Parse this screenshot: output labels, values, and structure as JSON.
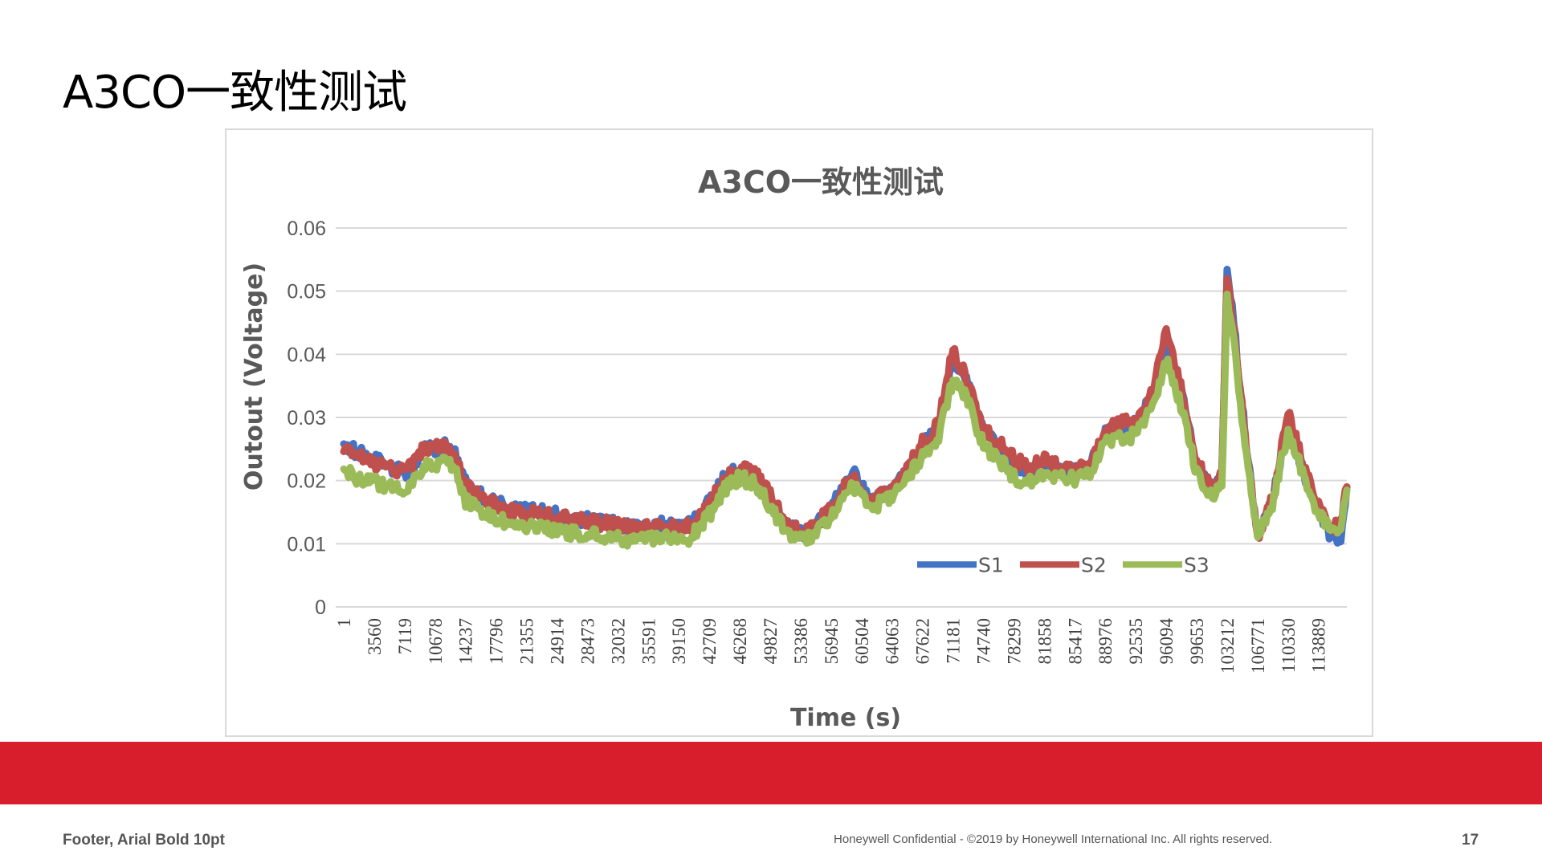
{
  "slide": {
    "title": "A3CO一致性测试"
  },
  "footer": {
    "left": "Footer, Arial Bold 10pt",
    "center": "Honeywell Confidential - ©2019 by Honeywell International Inc. All rights reserved.",
    "page": "17"
  },
  "colors": {
    "brand_band": "#d81e2c",
    "grid": "#d9d9d9",
    "frame": "#d9d9d9"
  },
  "chart_data": {
    "type": "line",
    "title": "A3CO一致性测试",
    "xlabel": "Time (s)",
    "ylabel": "Outout (Voltage)",
    "ylim": [
      0,
      0.06
    ],
    "yticks": [
      "0",
      "0.01",
      "0.02",
      "0.03",
      "0.04",
      "0.05",
      "0.06"
    ],
    "xticks": [
      "1",
      "3560",
      "7119",
      "10678",
      "14237",
      "17796",
      "21355",
      "24914",
      "28473",
      "32032",
      "35591",
      "39150",
      "42709",
      "46268",
      "49827",
      "53386",
      "56945",
      "60504",
      "64063",
      "67622",
      "71181",
      "74740",
      "78299",
      "81858",
      "85417",
      "88976",
      "92535",
      "96094",
      "99653",
      "103212",
      "106771",
      "110330",
      "113889"
    ],
    "xlim": [
      1,
      117200
    ],
    "grid": true,
    "legend_position": "bottom-right inside plot",
    "series": [
      {
        "name": "S1",
        "color": "#4472c4",
        "points": [
          [
            1,
            0.0262
          ],
          [
            1500,
            0.0245
          ],
          [
            3560,
            0.0232
          ],
          [
            5500,
            0.0222
          ],
          [
            7119,
            0.021
          ],
          [
            8600,
            0.0232
          ],
          [
            9500,
            0.0255
          ],
          [
            10678,
            0.025
          ],
          [
            12000,
            0.0255
          ],
          [
            13000,
            0.024
          ],
          [
            14237,
            0.0195
          ],
          [
            16000,
            0.0178
          ],
          [
            17796,
            0.0165
          ],
          [
            19500,
            0.0155
          ],
          [
            21355,
            0.0152
          ],
          [
            23000,
            0.015
          ],
          [
            24914,
            0.0145
          ],
          [
            26500,
            0.014
          ],
          [
            28473,
            0.0137
          ],
          [
            30500,
            0.0134
          ],
          [
            32032,
            0.013
          ],
          [
            33500,
            0.0125
          ],
          [
            35591,
            0.0128
          ],
          [
            37500,
            0.0132
          ],
          [
            39150,
            0.0125
          ],
          [
            40500,
            0.013
          ],
          [
            42709,
            0.0165
          ],
          [
            44500,
            0.0205
          ],
          [
            46268,
            0.0218
          ],
          [
            48000,
            0.021
          ],
          [
            49827,
            0.0175
          ],
          [
            51500,
            0.0135
          ],
          [
            53386,
            0.0115
          ],
          [
            55000,
            0.0125
          ],
          [
            56945,
            0.0155
          ],
          [
            58500,
            0.0195
          ],
          [
            59500,
            0.022
          ],
          [
            60504,
            0.019
          ],
          [
            61800,
            0.0165
          ],
          [
            63000,
            0.0178
          ],
          [
            64063,
            0.0185
          ],
          [
            65800,
            0.0215
          ],
          [
            67622,
            0.0255
          ],
          [
            69500,
            0.0285
          ],
          [
            70300,
            0.0338
          ],
          [
            71181,
            0.0385
          ],
          [
            72200,
            0.0375
          ],
          [
            73300,
            0.0335
          ],
          [
            74740,
            0.0275
          ],
          [
            76500,
            0.0255
          ],
          [
            78299,
            0.0225
          ],
          [
            80000,
            0.0215
          ],
          [
            81858,
            0.023
          ],
          [
            83500,
            0.0218
          ],
          [
            85417,
            0.0215
          ],
          [
            87200,
            0.0225
          ],
          [
            88976,
            0.0275
          ],
          [
            90800,
            0.0285
          ],
          [
            92535,
            0.029
          ],
          [
            94500,
            0.0335
          ],
          [
            96094,
            0.0425
          ],
          [
            97800,
            0.0345
          ],
          [
            99653,
            0.0225
          ],
          [
            101500,
            0.018
          ],
          [
            102600,
            0.0205
          ],
          [
            103212,
            0.0545
          ],
          [
            104200,
            0.042
          ],
          [
            105500,
            0.025
          ],
          [
            106771,
            0.0115
          ],
          [
            108500,
            0.0165
          ],
          [
            110330,
            0.0295
          ],
          [
            112000,
            0.022
          ],
          [
            113889,
            0.015
          ],
          [
            115500,
            0.0108
          ],
          [
            116500,
            0.0112
          ],
          [
            117200,
            0.019
          ]
        ]
      },
      {
        "name": "S2",
        "color": "#c0504d",
        "points": [
          [
            1,
            0.0255
          ],
          [
            1500,
            0.024
          ],
          [
            3560,
            0.0228
          ],
          [
            5500,
            0.022
          ],
          [
            7119,
            0.0212
          ],
          [
            8600,
            0.0235
          ],
          [
            9500,
            0.0255
          ],
          [
            10678,
            0.0252
          ],
          [
            12000,
            0.0252
          ],
          [
            13000,
            0.0238
          ],
          [
            14237,
            0.0192
          ],
          [
            16000,
            0.0175
          ],
          [
            17796,
            0.016
          ],
          [
            19500,
            0.0152
          ],
          [
            21355,
            0.0148
          ],
          [
            23000,
            0.0148
          ],
          [
            24914,
            0.0143
          ],
          [
            26500,
            0.0138
          ],
          [
            28473,
            0.0135
          ],
          [
            30500,
            0.0132
          ],
          [
            32032,
            0.0128
          ],
          [
            33500,
            0.0124
          ],
          [
            35591,
            0.0126
          ],
          [
            37500,
            0.013
          ],
          [
            39150,
            0.0123
          ],
          [
            40500,
            0.0128
          ],
          [
            42709,
            0.0163
          ],
          [
            44500,
            0.0205
          ],
          [
            46268,
            0.022
          ],
          [
            48000,
            0.0212
          ],
          [
            49827,
            0.0178
          ],
          [
            51500,
            0.0138
          ],
          [
            53386,
            0.0115
          ],
          [
            55000,
            0.0128
          ],
          [
            56945,
            0.0155
          ],
          [
            58500,
            0.019
          ],
          [
            59500,
            0.0212
          ],
          [
            60504,
            0.0185
          ],
          [
            61800,
            0.0165
          ],
          [
            63000,
            0.0178
          ],
          [
            64063,
            0.0188
          ],
          [
            65800,
            0.022
          ],
          [
            67622,
            0.026
          ],
          [
            69500,
            0.029
          ],
          [
            70300,
            0.035
          ],
          [
            71181,
            0.0405
          ],
          [
            72200,
            0.038
          ],
          [
            73300,
            0.034
          ],
          [
            74740,
            0.028
          ],
          [
            76500,
            0.026
          ],
          [
            78299,
            0.0235
          ],
          [
            80000,
            0.022
          ],
          [
            81858,
            0.0235
          ],
          [
            83500,
            0.0222
          ],
          [
            85417,
            0.022
          ],
          [
            87200,
            0.0228
          ],
          [
            88976,
            0.028
          ],
          [
            90800,
            0.029
          ],
          [
            92535,
            0.0295
          ],
          [
            94500,
            0.034
          ],
          [
            96094,
            0.0438
          ],
          [
            97800,
            0.035
          ],
          [
            99653,
            0.023
          ],
          [
            101500,
            0.0185
          ],
          [
            102600,
            0.021
          ],
          [
            103212,
            0.052
          ],
          [
            104200,
            0.041
          ],
          [
            105500,
            0.025
          ],
          [
            106771,
            0.0108
          ],
          [
            108500,
            0.017
          ],
          [
            110330,
            0.0305
          ],
          [
            112000,
            0.0235
          ],
          [
            113889,
            0.016
          ],
          [
            115500,
            0.0125
          ],
          [
            116500,
            0.0135
          ],
          [
            117200,
            0.019
          ]
        ]
      },
      {
        "name": "S3",
        "color": "#9bbb59",
        "points": [
          [
            1,
            0.0218
          ],
          [
            1500,
            0.0205
          ],
          [
            3560,
            0.0198
          ],
          [
            5500,
            0.019
          ],
          [
            7119,
            0.018
          ],
          [
            8600,
            0.0205
          ],
          [
            9500,
            0.0225
          ],
          [
            10678,
            0.0222
          ],
          [
            12000,
            0.0228
          ],
          [
            13000,
            0.0215
          ],
          [
            14237,
            0.0168
          ],
          [
            16000,
            0.0152
          ],
          [
            17796,
            0.014
          ],
          [
            19500,
            0.013
          ],
          [
            21355,
            0.0128
          ],
          [
            23000,
            0.0126
          ],
          [
            24914,
            0.0122
          ],
          [
            26500,
            0.0118
          ],
          [
            28473,
            0.0115
          ],
          [
            30500,
            0.0112
          ],
          [
            32032,
            0.0108
          ],
          [
            33500,
            0.0102
          ],
          [
            35591,
            0.0108
          ],
          [
            37500,
            0.0112
          ],
          [
            39150,
            0.0105
          ],
          [
            40500,
            0.011
          ],
          [
            42709,
            0.0145
          ],
          [
            44500,
            0.0188
          ],
          [
            46268,
            0.0205
          ],
          [
            48000,
            0.0195
          ],
          [
            49827,
            0.016
          ],
          [
            51500,
            0.0122
          ],
          [
            53386,
            0.0105
          ],
          [
            55000,
            0.0115
          ],
          [
            56945,
            0.0142
          ],
          [
            58500,
            0.0175
          ],
          [
            59500,
            0.0195
          ],
          [
            60504,
            0.0172
          ],
          [
            61800,
            0.0155
          ],
          [
            63000,
            0.0168
          ],
          [
            64063,
            0.0175
          ],
          [
            65800,
            0.0205
          ],
          [
            67622,
            0.0238
          ],
          [
            69500,
            0.0265
          ],
          [
            70300,
            0.0318
          ],
          [
            71181,
            0.0358
          ],
          [
            72200,
            0.0348
          ],
          [
            73300,
            0.031
          ],
          [
            74740,
            0.0255
          ],
          [
            76500,
            0.0235
          ],
          [
            78299,
            0.0205
          ],
          [
            80000,
            0.0198
          ],
          [
            81858,
            0.0215
          ],
          [
            83500,
            0.0205
          ],
          [
            85417,
            0.0202
          ],
          [
            87200,
            0.021
          ],
          [
            88976,
            0.0258
          ],
          [
            90800,
            0.0268
          ],
          [
            92535,
            0.0272
          ],
          [
            94500,
            0.0315
          ],
          [
            96094,
            0.0395
          ],
          [
            97800,
            0.032
          ],
          [
            99653,
            0.021
          ],
          [
            101500,
            0.0175
          ],
          [
            102600,
            0.0195
          ],
          [
            103212,
            0.0495
          ],
          [
            104200,
            0.0395
          ],
          [
            105500,
            0.0235
          ],
          [
            106771,
            0.0118
          ],
          [
            108500,
            0.0162
          ],
          [
            110330,
            0.028
          ],
          [
            112000,
            0.0215
          ],
          [
            113889,
            0.0148
          ],
          [
            115500,
            0.0118
          ],
          [
            116500,
            0.0125
          ],
          [
            117200,
            0.0185
          ]
        ]
      }
    ]
  }
}
